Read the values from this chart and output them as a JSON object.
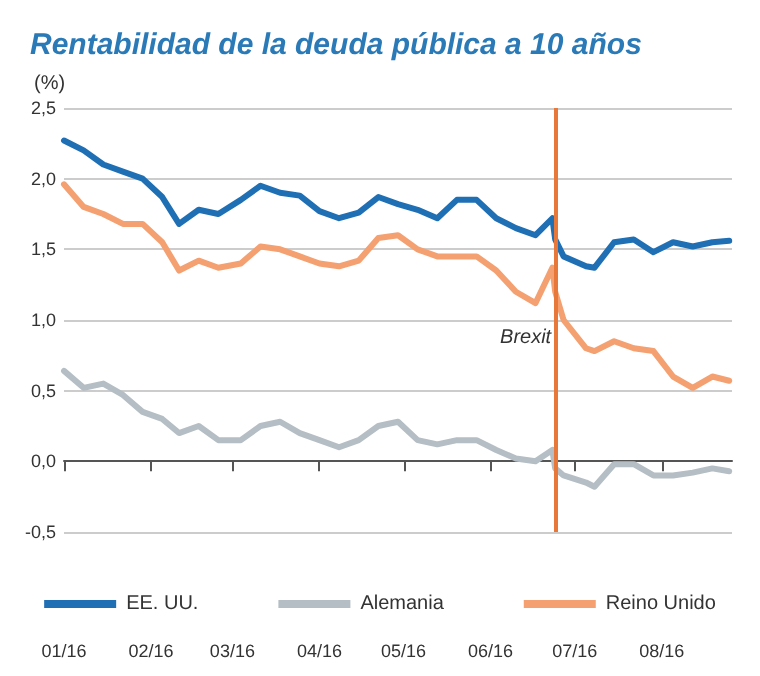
{
  "chart_data": {
    "type": "line",
    "title": "Rentabilidad de la deuda pública a 10 años",
    "ylabel": "(%)",
    "x": [
      "2016-01-01",
      "2016-01-08",
      "2016-01-15",
      "2016-01-22",
      "2016-01-29",
      "2016-02-05",
      "2016-02-11",
      "2016-02-18",
      "2016-02-25",
      "2016-03-04",
      "2016-03-11",
      "2016-03-18",
      "2016-03-25",
      "2016-04-01",
      "2016-04-08",
      "2016-04-15",
      "2016-04-22",
      "2016-04-29",
      "2016-05-06",
      "2016-05-13",
      "2016-05-20",
      "2016-05-27",
      "2016-06-03",
      "2016-06-10",
      "2016-06-17",
      "2016-06-23",
      "2016-06-24",
      "2016-06-27",
      "2016-07-05",
      "2016-07-08",
      "2016-07-15",
      "2016-07-22",
      "2016-07-29",
      "2016-08-05",
      "2016-08-12",
      "2016-08-19",
      "2016-08-25"
    ],
    "series": [
      {
        "name": "EE. UU.",
        "color": "#1f6fb5",
        "values": [
          2.27,
          2.2,
          2.1,
          2.05,
          2.0,
          1.87,
          1.68,
          1.78,
          1.75,
          1.85,
          1.95,
          1.9,
          1.88,
          1.77,
          1.72,
          1.76,
          1.87,
          1.82,
          1.78,
          1.72,
          1.85,
          1.85,
          1.72,
          1.65,
          1.6,
          1.72,
          1.57,
          1.45,
          1.38,
          1.37,
          1.55,
          1.57,
          1.48,
          1.55,
          1.52,
          1.55,
          1.56
        ]
      },
      {
        "name": "Alemania",
        "color": "#b4bec4",
        "values": [
          0.64,
          0.52,
          0.55,
          0.47,
          0.35,
          0.3,
          0.2,
          0.25,
          0.15,
          0.15,
          0.25,
          0.28,
          0.2,
          0.15,
          0.1,
          0.15,
          0.25,
          0.28,
          0.15,
          0.12,
          0.15,
          0.15,
          0.08,
          0.02,
          0.0,
          0.08,
          -0.05,
          -0.1,
          -0.15,
          -0.18,
          -0.02,
          -0.02,
          -0.1,
          -0.1,
          -0.08,
          -0.05,
          -0.07
        ]
      },
      {
        "name": "Reino Unido",
        "color": "#f4a070",
        "values": [
          1.96,
          1.8,
          1.75,
          1.68,
          1.68,
          1.55,
          1.35,
          1.42,
          1.37,
          1.4,
          1.52,
          1.5,
          1.45,
          1.4,
          1.38,
          1.42,
          1.58,
          1.6,
          1.5,
          1.45,
          1.45,
          1.45,
          1.35,
          1.2,
          1.12,
          1.37,
          1.2,
          1.0,
          0.8,
          0.78,
          0.85,
          0.8,
          0.78,
          0.6,
          0.52,
          0.6,
          0.57
        ]
      }
    ],
    "xlim": [
      "2016-01-01",
      "2016-08-26"
    ],
    "xticks": [
      {
        "value": "2016-01-01",
        "label": "01/16"
      },
      {
        "value": "2016-02-01",
        "label": "02/16"
      },
      {
        "value": "2016-03-01",
        "label": "03/16"
      },
      {
        "value": "2016-04-01",
        "label": "04/16"
      },
      {
        "value": "2016-05-01",
        "label": "05/16"
      },
      {
        "value": "2016-06-01",
        "label": "06/16"
      },
      {
        "value": "2016-07-01",
        "label": "07/16"
      },
      {
        "value": "2016-08-01",
        "label": "08/16"
      }
    ],
    "ylim": [
      -0.5,
      2.5
    ],
    "yticks": [
      {
        "value": -0.5,
        "label": "-0,5"
      },
      {
        "value": 0,
        "label": "0,0"
      },
      {
        "value": 0.5,
        "label": "0,5"
      },
      {
        "value": 1,
        "label": "1,0"
      },
      {
        "value": 1.5,
        "label": "1,5"
      },
      {
        "value": 2,
        "label": "2,0"
      },
      {
        "value": 2.5,
        "label": "2,5"
      }
    ],
    "ref_lines": [
      {
        "axis": "x",
        "value": "2016-06-24",
        "label": "Brexit",
        "color": "#e8773a"
      }
    ],
    "grid": "y",
    "legend": "bottom",
    "marker": "none",
    "line_style": "solid"
  }
}
